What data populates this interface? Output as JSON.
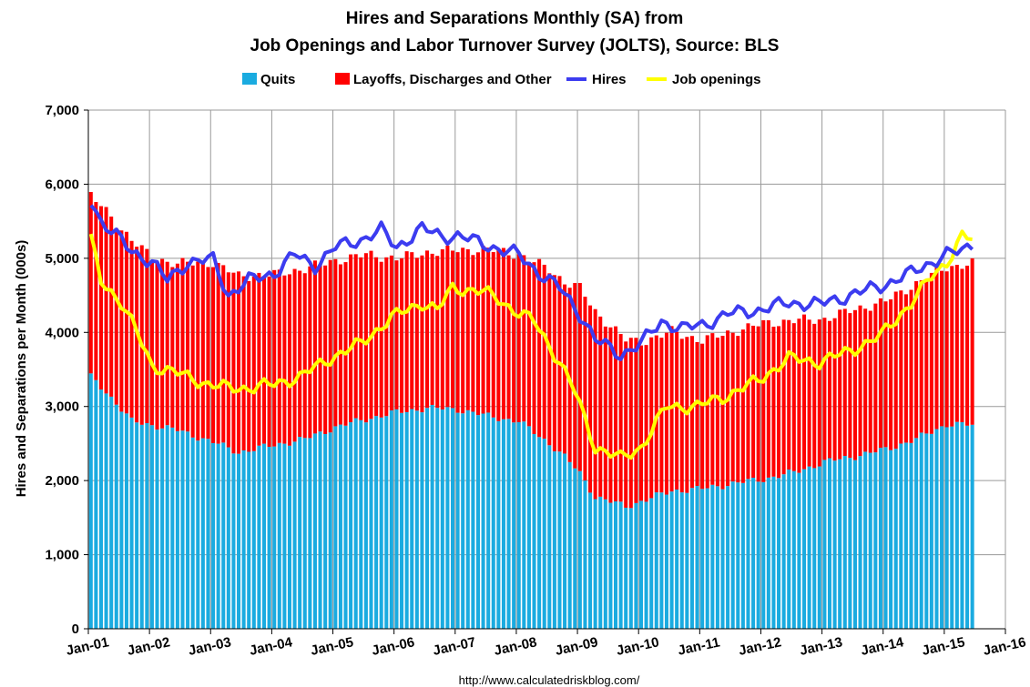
{
  "chart_data": {
    "type": "bar",
    "title": "Hires and Separations Monthly (SA) from",
    "subtitle": "Job Openings and Labor Turnover Survey (JOLTS), Source: BLS",
    "ylabel": "Hires and Separations per Month (000s)",
    "xlabel": "",
    "ylim": [
      0,
      7000
    ],
    "yticks": [
      0,
      1000,
      2000,
      3000,
      4000,
      5000,
      6000,
      7000
    ],
    "ytick_labels": [
      "0",
      "1,000",
      "2,000",
      "3,000",
      "4,000",
      "5,000",
      "6,000",
      "7,000"
    ],
    "xtick_labels": [
      "Jan-01",
      "Jan-02",
      "Jan-03",
      "Jan-04",
      "Jan-05",
      "Jan-06",
      "Jan-07",
      "Jan-08",
      "Jan-09",
      "Jan-10",
      "Jan-11",
      "Jan-12",
      "Jan-13",
      "Jan-14",
      "Jan-15",
      "Jan-16"
    ],
    "x_start": "Jan-01",
    "x_end": "Jan-16",
    "stacked": true,
    "grid": true,
    "legend_position": "top",
    "source_text": "http://www.calculatedriskblog.com/",
    "series": [
      {
        "name": "Quits",
        "kind": "bar",
        "color": "#1aabe0",
        "anchors": [
          [
            "2001-01",
            3400
          ],
          [
            "2001-04",
            3200
          ],
          [
            "2001-09",
            2800
          ],
          [
            "2002-01",
            2750
          ],
          [
            "2002-06",
            2680
          ],
          [
            "2003-01",
            2520
          ],
          [
            "2003-06",
            2380
          ],
          [
            "2004-01",
            2480
          ],
          [
            "2004-07",
            2560
          ],
          [
            "2005-01",
            2720
          ],
          [
            "2005-07",
            2830
          ],
          [
            "2006-01",
            2920
          ],
          [
            "2006-07",
            2980
          ],
          [
            "2007-01",
            2960
          ],
          [
            "2007-07",
            2870
          ],
          [
            "2008-01",
            2800
          ],
          [
            "2008-07",
            2500
          ],
          [
            "2008-10",
            2320
          ],
          [
            "2009-01",
            2100
          ],
          [
            "2009-04",
            1780
          ],
          [
            "2009-10",
            1650
          ],
          [
            "2010-01",
            1720
          ],
          [
            "2010-07",
            1860
          ],
          [
            "2011-01",
            1890
          ],
          [
            "2011-07",
            1960
          ],
          [
            "2012-01",
            2020
          ],
          [
            "2012-07",
            2110
          ],
          [
            "2013-01",
            2250
          ],
          [
            "2013-07",
            2330
          ],
          [
            "2014-01",
            2420
          ],
          [
            "2014-07",
            2560
          ],
          [
            "2015-01",
            2760
          ],
          [
            "2015-06",
            2750
          ]
        ]
      },
      {
        "name": "Layoffs, Discharges and Other",
        "kind": "bar",
        "color": "#ff0000",
        "anchors": [
          [
            "2001-01",
            2450
          ],
          [
            "2001-04",
            2430
          ],
          [
            "2001-09",
            2450
          ],
          [
            "2002-01",
            2250
          ],
          [
            "2002-06",
            2250
          ],
          [
            "2003-01",
            2420
          ],
          [
            "2003-06",
            2380
          ],
          [
            "2004-01",
            2300
          ],
          [
            "2004-07",
            2300
          ],
          [
            "2005-01",
            2250
          ],
          [
            "2005-07",
            2220
          ],
          [
            "2006-01",
            2080
          ],
          [
            "2006-07",
            2100
          ],
          [
            "2007-01",
            2150
          ],
          [
            "2007-07",
            2250
          ],
          [
            "2008-01",
            2250
          ],
          [
            "2008-07",
            2350
          ],
          [
            "2008-10",
            2360
          ],
          [
            "2009-01",
            2500
          ],
          [
            "2009-04",
            2500
          ],
          [
            "2009-10",
            2250
          ],
          [
            "2010-01",
            2150
          ],
          [
            "2010-07",
            2150
          ],
          [
            "2011-01",
            2000
          ],
          [
            "2011-07",
            2050
          ],
          [
            "2012-01",
            2100
          ],
          [
            "2012-07",
            2050
          ],
          [
            "2013-01",
            1930
          ],
          [
            "2013-07",
            1980
          ],
          [
            "2014-01",
            2000
          ],
          [
            "2014-07",
            2100
          ],
          [
            "2015-01",
            2120
          ],
          [
            "2015-06",
            2180
          ]
        ]
      },
      {
        "name": "Hires",
        "kind": "line",
        "color": "#3c3cf0",
        "anchors": [
          [
            "2001-01",
            5800
          ],
          [
            "2001-03",
            5500
          ],
          [
            "2001-06",
            5300
          ],
          [
            "2001-09",
            5100
          ],
          [
            "2002-01",
            4950
          ],
          [
            "2002-04",
            4700
          ],
          [
            "2002-08",
            4950
          ],
          [
            "2003-01",
            4980
          ],
          [
            "2003-04",
            4500
          ],
          [
            "2003-08",
            4700
          ],
          [
            "2004-01",
            4800
          ],
          [
            "2004-05",
            5050
          ],
          [
            "2004-09",
            4900
          ],
          [
            "2005-01",
            5150
          ],
          [
            "2005-06",
            5250
          ],
          [
            "2005-10",
            5380
          ],
          [
            "2006-01",
            5150
          ],
          [
            "2006-06",
            5400
          ],
          [
            "2006-10",
            5300
          ],
          [
            "2007-01",
            5300
          ],
          [
            "2007-06",
            5200
          ],
          [
            "2007-10",
            5100
          ],
          [
            "2008-01",
            5050
          ],
          [
            "2008-05",
            4800
          ],
          [
            "2008-09",
            4600
          ],
          [
            "2009-01",
            4250
          ],
          [
            "2009-04",
            3900
          ],
          [
            "2009-09",
            3700
          ],
          [
            "2010-01",
            3850
          ],
          [
            "2010-05",
            4150
          ],
          [
            "2010-09",
            4050
          ],
          [
            "2011-01",
            4100
          ],
          [
            "2011-06",
            4250
          ],
          [
            "2011-12",
            4300
          ],
          [
            "2012-06",
            4400
          ],
          [
            "2012-12",
            4380
          ],
          [
            "2013-06",
            4500
          ],
          [
            "2014-01",
            4650
          ],
          [
            "2014-06",
            4800
          ],
          [
            "2014-10",
            4950
          ],
          [
            "2015-01",
            5050
          ],
          [
            "2015-04",
            5100
          ],
          [
            "2015-06",
            5200
          ]
        ]
      },
      {
        "name": "Job openings",
        "kind": "line",
        "color": "#ffff00",
        "anchors": [
          [
            "2001-01",
            5250
          ],
          [
            "2001-03",
            4700
          ],
          [
            "2001-07",
            4400
          ],
          [
            "2001-10",
            4000
          ],
          [
            "2002-01",
            3550
          ],
          [
            "2002-06",
            3450
          ],
          [
            "2002-12",
            3300
          ],
          [
            "2003-04",
            3250
          ],
          [
            "2003-08",
            3250
          ],
          [
            "2004-01",
            3300
          ],
          [
            "2004-06",
            3400
          ],
          [
            "2004-12",
            3650
          ],
          [
            "2005-06",
            3850
          ],
          [
            "2005-12",
            4200
          ],
          [
            "2006-06",
            4400
          ],
          [
            "2006-09",
            4300
          ],
          [
            "2006-12",
            4600
          ],
          [
            "2007-06",
            4550
          ],
          [
            "2007-09",
            4450
          ],
          [
            "2007-12",
            4300
          ],
          [
            "2008-04",
            4150
          ],
          [
            "2008-09",
            3600
          ],
          [
            "2008-12",
            3200
          ],
          [
            "2009-04",
            2450
          ],
          [
            "2009-09",
            2300
          ],
          [
            "2010-01",
            2450
          ],
          [
            "2010-06",
            3000
          ],
          [
            "2010-12",
            3000
          ],
          [
            "2011-06",
            3150
          ],
          [
            "2011-12",
            3350
          ],
          [
            "2012-06",
            3650
          ],
          [
            "2012-12",
            3600
          ],
          [
            "2013-06",
            3750
          ],
          [
            "2013-12",
            3950
          ],
          [
            "2014-06",
            4400
          ],
          [
            "2014-10",
            4750
          ],
          [
            "2015-01",
            4950
          ],
          [
            "2015-04",
            5300
          ],
          [
            "2015-06",
            5250
          ]
        ]
      }
    ]
  }
}
